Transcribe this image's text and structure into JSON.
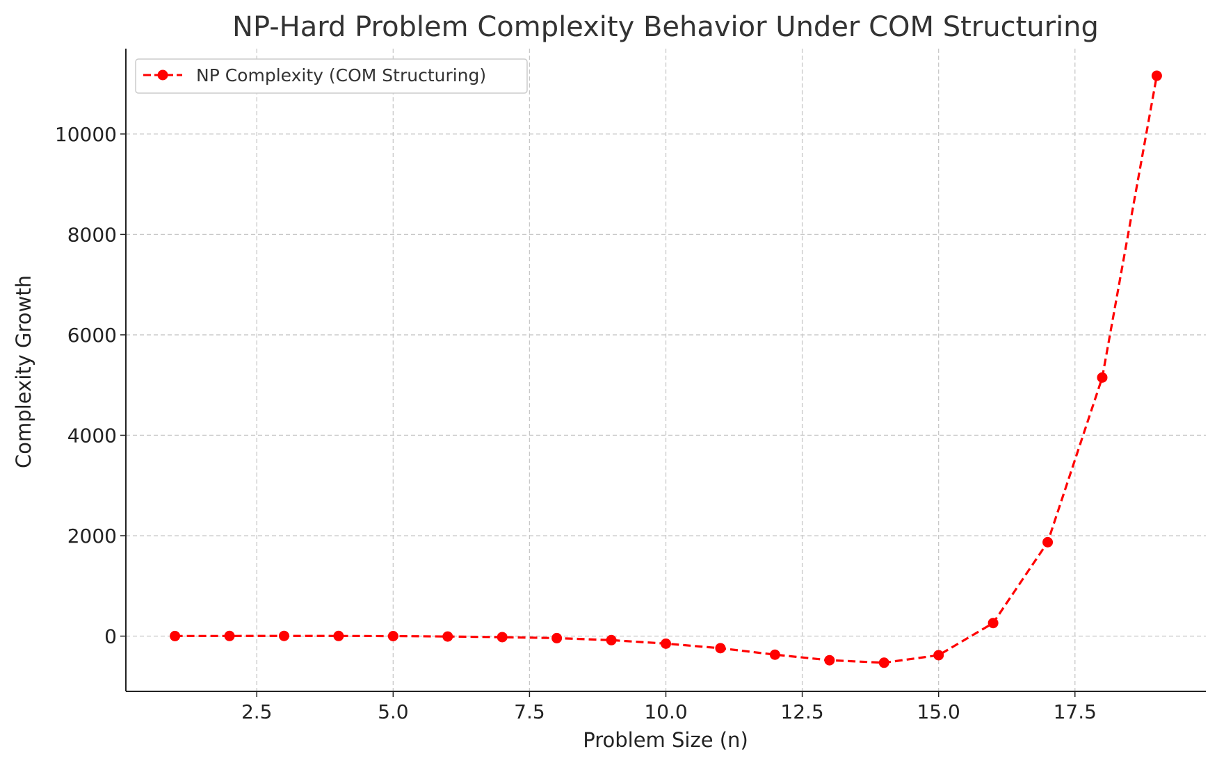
{
  "chart_data": {
    "type": "line",
    "title": "NP-Hard Problem Complexity Behavior Under COM Structuring",
    "xlabel": "Problem Size (n)",
    "ylabel": "Complexity Growth",
    "xlim": [
      0.1,
      19.9
    ],
    "ylim": [
      -1100,
      11700
    ],
    "xticks": [
      2.5,
      5.0,
      7.5,
      10.0,
      12.5,
      15.0,
      17.5
    ],
    "xtick_labels": [
      "2.5",
      "5.0",
      "7.5",
      "10.0",
      "12.5",
      "15.0",
      "17.5"
    ],
    "yticks": [
      0,
      2000,
      4000,
      6000,
      8000,
      10000
    ],
    "ytick_labels": [
      "0",
      "2000",
      "4000",
      "6000",
      "8000",
      "10000"
    ],
    "grid": true,
    "legend_position": "top-left",
    "series": [
      {
        "name": "NP Complexity (COM Structuring)",
        "color": "#ff0000",
        "line_style": "dashed",
        "marker": "circle",
        "x": [
          1,
          2,
          3,
          4,
          5,
          6,
          7,
          8,
          9,
          10,
          11,
          12,
          13,
          14,
          15,
          16,
          17,
          18,
          19
        ],
        "y": [
          1,
          3,
          4,
          3,
          0,
          -8,
          -20,
          -40,
          -80,
          -150,
          -240,
          -370,
          -480,
          -530,
          -380,
          260,
          1870,
          5150,
          11160
        ]
      }
    ]
  }
}
